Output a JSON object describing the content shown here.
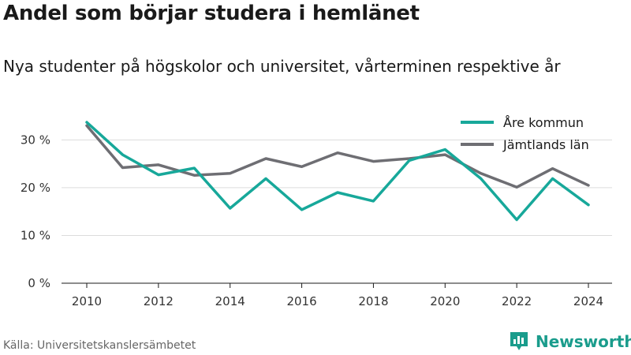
{
  "header": {
    "title": "Andel som börjar studera i hemlänet",
    "subtitle": "Nya studenter på högskolor och universitet, vårterminen respektive år"
  },
  "footer": {
    "source": "Källa: Universitetskanslersämbetet",
    "brand": "Newsworthy"
  },
  "colors": {
    "are": "#17a89a",
    "jamtland": "#6e6e73",
    "brand": "#1a9c8c"
  },
  "chart_data": {
    "type": "line",
    "x": [
      2010,
      2011,
      2012,
      2013,
      2014,
      2015,
      2016,
      2017,
      2018,
      2019,
      2020,
      2021,
      2022,
      2023,
      2024
    ],
    "x_ticks": [
      2010,
      2012,
      2014,
      2016,
      2018,
      2020,
      2022,
      2024
    ],
    "y_ticks": [
      0,
      10,
      20,
      30
    ],
    "y_tick_labels": [
      "0 %",
      "10 %",
      "20 %",
      "30 %"
    ],
    "ylim": [
      0,
      37
    ],
    "grid": true,
    "legend_position": "top-right",
    "series": [
      {
        "name": "Åre kommun",
        "color": "#17a89a",
        "values": [
          33.7,
          26.9,
          22.7,
          24.1,
          15.7,
          21.9,
          15.4,
          19.0,
          17.2,
          25.7,
          28.0,
          21.9,
          13.3,
          21.9,
          16.4
        ]
      },
      {
        "name": "Jämtlands län",
        "color": "#6e6e73",
        "values": [
          33.0,
          24.2,
          24.8,
          22.6,
          23.0,
          26.1,
          24.4,
          27.3,
          25.5,
          26.1,
          26.9,
          23.0,
          20.1,
          24.0,
          20.5
        ]
      }
    ]
  }
}
